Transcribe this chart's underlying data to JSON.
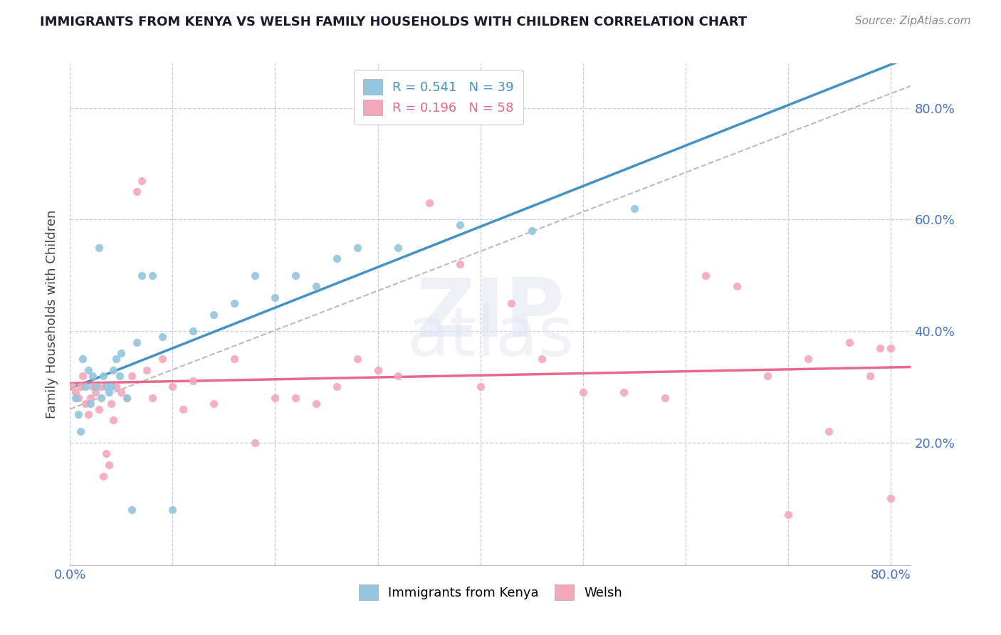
{
  "title": "IMMIGRANTS FROM KENYA VS WELSH FAMILY HOUSEHOLDS WITH CHILDREN CORRELATION CHART",
  "source": "Source: ZipAtlas.com",
  "ylabel": "Family Households with Children",
  "xlim": [
    0.0,
    0.82
  ],
  "ylim": [
    -0.02,
    0.88
  ],
  "kenya_color": "#92c5de",
  "welsh_color": "#f4a7b9",
  "kenya_line_color": "#4292c6",
  "welsh_line_color": "#e8688a",
  "gray_dash_color": "#bbbbbb",
  "legend_R_kenya": "0.541",
  "legend_N_kenya": "39",
  "legend_R_welsh": "0.196",
  "legend_N_welsh": "58",
  "legend_label_kenya": "Immigrants from Kenya",
  "legend_label_welsh": "Welsh",
  "title_color": "#1a1a2e",
  "source_color": "#888888",
  "tick_color": "#4472c4",
  "ylabel_color": "#444444",
  "grid_color": "#c5cce8",
  "ytick_vals": [
    0.2,
    0.4,
    0.6,
    0.8
  ],
  "ytick_labels": [
    "20.0%",
    "40.0%",
    "60.0%",
    "80.0%"
  ],
  "xtick_vals": [
    0.0,
    0.1,
    0.2,
    0.3,
    0.4,
    0.5,
    0.6,
    0.7,
    0.8
  ],
  "kenya_x": [
    0.005,
    0.008,
    0.01,
    0.012,
    0.015,
    0.018,
    0.02,
    0.022,
    0.025,
    0.028,
    0.03,
    0.032,
    0.035,
    0.038,
    0.04,
    0.042,
    0.045,
    0.048,
    0.05,
    0.055,
    0.06,
    0.065,
    0.07,
    0.08,
    0.09,
    0.1,
    0.12,
    0.14,
    0.16,
    0.18,
    0.2,
    0.22,
    0.24,
    0.26,
    0.28,
    0.32,
    0.38,
    0.45,
    0.55
  ],
  "kenya_y": [
    0.28,
    0.25,
    0.22,
    0.35,
    0.3,
    0.33,
    0.27,
    0.32,
    0.3,
    0.55,
    0.28,
    0.32,
    0.3,
    0.29,
    0.3,
    0.33,
    0.35,
    0.32,
    0.36,
    0.28,
    0.08,
    0.38,
    0.5,
    0.5,
    0.39,
    0.08,
    0.4,
    0.43,
    0.45,
    0.5,
    0.46,
    0.5,
    0.48,
    0.53,
    0.55,
    0.55,
    0.59,
    0.58,
    0.62
  ],
  "welsh_x": [
    0.002,
    0.005,
    0.008,
    0.01,
    0.012,
    0.015,
    0.018,
    0.02,
    0.022,
    0.025,
    0.028,
    0.03,
    0.032,
    0.035,
    0.038,
    0.04,
    0.042,
    0.045,
    0.05,
    0.055,
    0.06,
    0.065,
    0.07,
    0.075,
    0.08,
    0.09,
    0.1,
    0.11,
    0.12,
    0.14,
    0.16,
    0.18,
    0.2,
    0.22,
    0.24,
    0.26,
    0.28,
    0.3,
    0.32,
    0.35,
    0.38,
    0.4,
    0.43,
    0.46,
    0.5,
    0.54,
    0.58,
    0.62,
    0.65,
    0.68,
    0.7,
    0.72,
    0.74,
    0.76,
    0.78,
    0.79,
    0.8,
    0.8
  ],
  "welsh_y": [
    0.3,
    0.29,
    0.28,
    0.3,
    0.32,
    0.27,
    0.25,
    0.28,
    0.3,
    0.29,
    0.26,
    0.3,
    0.14,
    0.18,
    0.16,
    0.27,
    0.24,
    0.3,
    0.29,
    0.28,
    0.32,
    0.65,
    0.67,
    0.33,
    0.28,
    0.35,
    0.3,
    0.26,
    0.31,
    0.27,
    0.35,
    0.2,
    0.28,
    0.28,
    0.27,
    0.3,
    0.35,
    0.33,
    0.32,
    0.63,
    0.52,
    0.3,
    0.45,
    0.35,
    0.29,
    0.29,
    0.28,
    0.5,
    0.48,
    0.32,
    0.07,
    0.35,
    0.22,
    0.38,
    0.32,
    0.37,
    0.37,
    0.1
  ]
}
